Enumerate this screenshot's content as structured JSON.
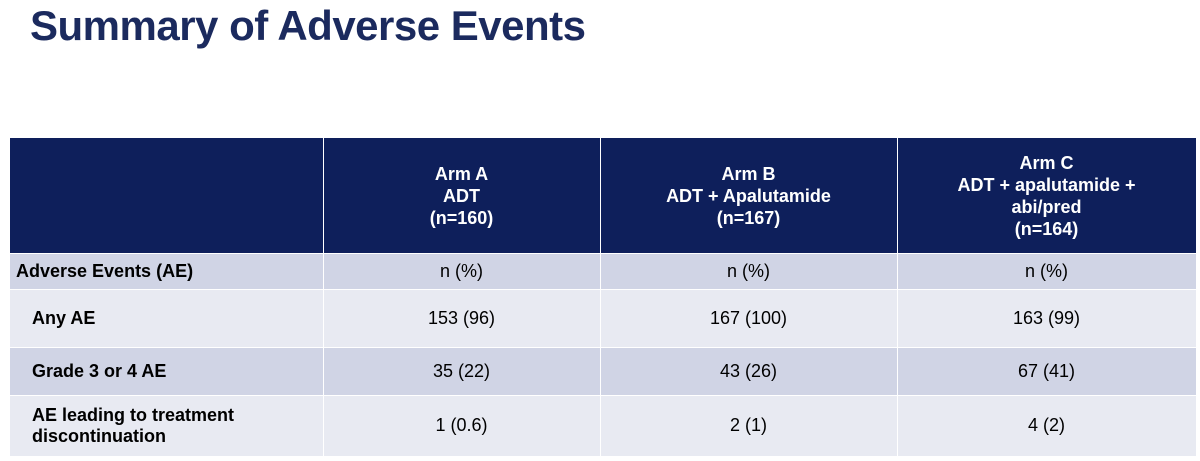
{
  "header": {
    "title": "Summary of Adverse Events"
  },
  "table": {
    "columns": [
      null,
      [
        "Arm A",
        "ADT",
        "(n=160)"
      ],
      [
        "Arm B",
        "ADT + Apalutamide",
        "(n=167)"
      ],
      [
        "Arm C",
        "ADT + apalutamide +",
        "abi/pred",
        "(n=164)"
      ]
    ],
    "rows": [
      [
        "Adverse Events (AE)",
        "n (%)",
        "n (%)",
        "n (%)"
      ],
      [
        "Any AE",
        "153 (96)",
        "167 (100)",
        "163 (99)"
      ],
      [
        "Grade 3 or 4 AE",
        "35 (22)",
        "43 (26)",
        "67 (41)"
      ],
      [
        "AE leading to treatment discontinuation",
        "1 (0.6)",
        "2 (1)",
        "4 (2)"
      ]
    ]
  }
}
